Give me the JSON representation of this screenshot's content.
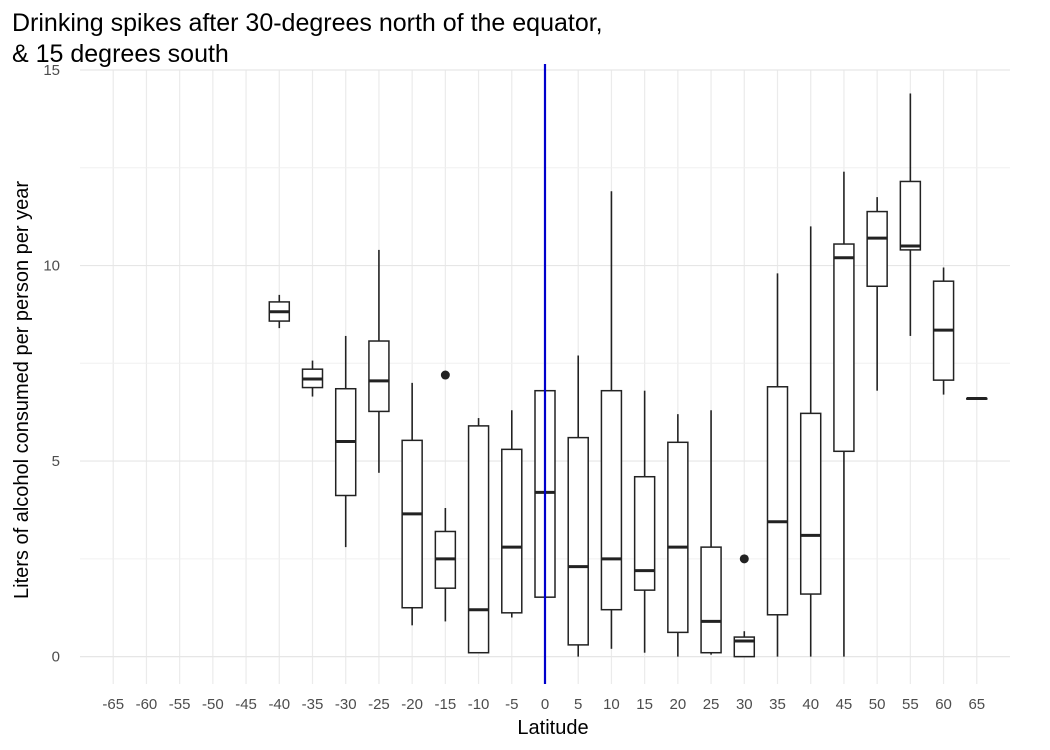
{
  "chart_data": {
    "type": "box",
    "title_lines": [
      "Drinking spikes after 30-degrees north of the equator,",
      "& 15 degrees south"
    ],
    "xlabel": "Latitude",
    "ylabel": "Liters of alcohol consumed per person per year",
    "x_ticks": [
      -65,
      -60,
      -55,
      -50,
      -45,
      -40,
      -35,
      -30,
      -25,
      -20,
      -15,
      -10,
      -5,
      0,
      5,
      10,
      15,
      20,
      25,
      30,
      35,
      40,
      45,
      50,
      55,
      60,
      65
    ],
    "y_ticks": [
      0,
      5,
      10,
      15
    ],
    "xlim": [
      -70,
      70
    ],
    "ylim": [
      -0.7,
      15
    ],
    "grid": true,
    "reference_line": {
      "x": 0,
      "color": "#0000cc"
    },
    "boxes": [
      {
        "lat": -40,
        "whisker_low": 8.4,
        "q1": 8.58,
        "median": 8.82,
        "q3": 9.07,
        "whisker_high": 9.25,
        "outliers": []
      },
      {
        "lat": -35,
        "whisker_low": 6.65,
        "q1": 6.88,
        "median": 7.1,
        "q3": 7.35,
        "whisker_high": 7.57,
        "outliers": []
      },
      {
        "lat": -30,
        "whisker_low": 2.8,
        "q1": 4.12,
        "median": 5.5,
        "q3": 6.85,
        "whisker_high": 8.2,
        "outliers": []
      },
      {
        "lat": -25,
        "whisker_low": 4.7,
        "q1": 6.27,
        "median": 7.05,
        "q3": 8.07,
        "whisker_high": 10.4,
        "outliers": []
      },
      {
        "lat": -20,
        "whisker_low": 0.8,
        "q1": 1.25,
        "median": 3.65,
        "q3": 5.53,
        "whisker_high": 7.0,
        "outliers": []
      },
      {
        "lat": -15,
        "whisker_low": 0.9,
        "q1": 1.75,
        "median": 2.5,
        "q3": 3.2,
        "whisker_high": 3.8,
        "outliers": [
          7.2
        ]
      },
      {
        "lat": -10,
        "whisker_low": 0.1,
        "q1": 0.1,
        "median": 1.2,
        "q3": 5.9,
        "whisker_high": 6.1,
        "outliers": []
      },
      {
        "lat": -5,
        "whisker_low": 1.0,
        "q1": 1.12,
        "median": 2.8,
        "q3": 5.3,
        "whisker_high": 6.3,
        "outliers": []
      },
      {
        "lat": 0,
        "whisker_low": 0.1,
        "q1": 1.52,
        "median": 4.2,
        "q3": 6.8,
        "whisker_high": 8.9,
        "outliers": []
      },
      {
        "lat": 5,
        "whisker_low": 0.0,
        "q1": 0.3,
        "median": 2.3,
        "q3": 5.6,
        "whisker_high": 7.7,
        "outliers": []
      },
      {
        "lat": 10,
        "whisker_low": 0.2,
        "q1": 1.2,
        "median": 2.5,
        "q3": 6.8,
        "whisker_high": 11.9,
        "outliers": []
      },
      {
        "lat": 15,
        "whisker_low": 0.1,
        "q1": 1.7,
        "median": 2.2,
        "q3": 4.6,
        "whisker_high": 6.8,
        "outliers": []
      },
      {
        "lat": 20,
        "whisker_low": 0.0,
        "q1": 0.62,
        "median": 2.8,
        "q3": 5.48,
        "whisker_high": 6.2,
        "outliers": []
      },
      {
        "lat": 25,
        "whisker_low": 0.05,
        "q1": 0.1,
        "median": 0.9,
        "q3": 2.8,
        "whisker_high": 6.3,
        "outliers": []
      },
      {
        "lat": 30,
        "whisker_low": 0.0,
        "q1": 0.0,
        "median": 0.4,
        "q3": 0.5,
        "whisker_high": 0.65,
        "outliers": [
          2.5
        ]
      },
      {
        "lat": 35,
        "whisker_low": 0.0,
        "q1": 1.07,
        "median": 3.45,
        "q3": 6.9,
        "whisker_high": 9.8,
        "outliers": []
      },
      {
        "lat": 40,
        "whisker_low": 0.0,
        "q1": 1.6,
        "median": 3.1,
        "q3": 6.22,
        "whisker_high": 11.0,
        "outliers": []
      },
      {
        "lat": 45,
        "whisker_low": 0.0,
        "q1": 5.25,
        "median": 10.2,
        "q3": 10.55,
        "whisker_high": 12.4,
        "outliers": []
      },
      {
        "lat": 50,
        "whisker_low": 6.8,
        "q1": 9.47,
        "median": 10.7,
        "q3": 11.38,
        "whisker_high": 11.75,
        "outliers": []
      },
      {
        "lat": 55,
        "whisker_low": 8.2,
        "q1": 10.4,
        "median": 10.5,
        "q3": 12.15,
        "whisker_high": 14.4,
        "outliers": []
      },
      {
        "lat": 60,
        "whisker_low": 6.7,
        "q1": 7.07,
        "median": 8.35,
        "q3": 9.6,
        "whisker_high": 9.95,
        "outliers": []
      },
      {
        "lat": 65,
        "whisker_low": 6.6,
        "q1": 6.6,
        "median": 6.6,
        "q3": 6.6,
        "whisker_high": 6.6,
        "outliers": []
      }
    ]
  }
}
